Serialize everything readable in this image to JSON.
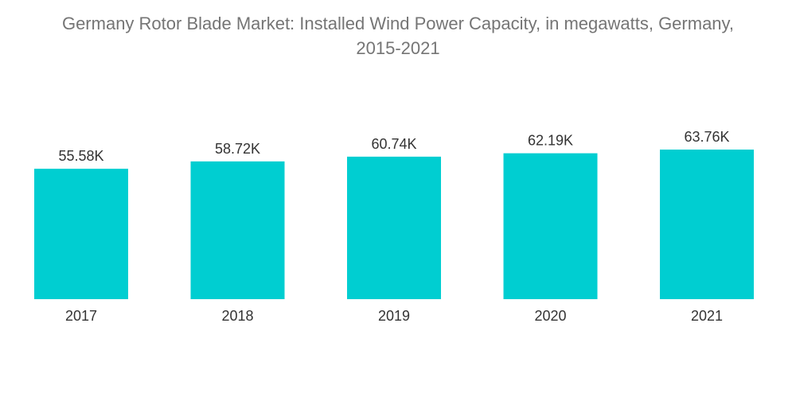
{
  "chart_data": {
    "type": "bar",
    "title_line1": "Germany Rotor Blade Market: Installed Wind Power Capacity, in megawatts, Germany,",
    "title_line2": "2015-2021",
    "categories": [
      "2017",
      "2018",
      "2019",
      "2020",
      "2021"
    ],
    "values": [
      55.58,
      58.72,
      60.74,
      62.19,
      63.76
    ],
    "value_labels": [
      "55.58K",
      "58.72K",
      "60.74K",
      "62.19K",
      "63.76K"
    ],
    "value_unit": "K",
    "xlabel": "",
    "ylabel": "",
    "ylim": [
      0,
      70
    ],
    "grid": false,
    "legend": "none",
    "bar_color": "#00CED1"
  }
}
